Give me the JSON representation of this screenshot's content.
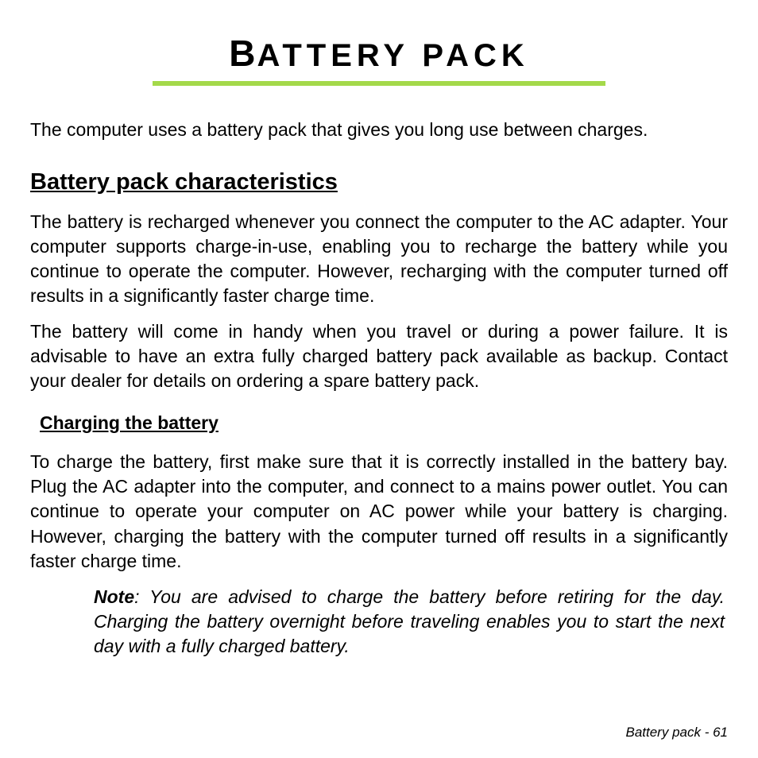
{
  "title": {
    "cap1": "B",
    "rest1": "ATTERY",
    "rest2": "PACK"
  },
  "underline_color": "#a4d94a",
  "intro": "The computer uses a battery pack that gives you long use between charges.",
  "section1": {
    "heading": "Battery pack characteristics",
    "p1": "The battery is recharged whenever you connect the computer to the AC adapter. Your computer supports charge-in-use, enabling you to recharge the battery while you continue to operate the computer. However, recharging with the computer turned off results in a significantly faster charge time.",
    "p2": "The battery will come in handy when you travel or during a power failure. It is advisable to have an extra fully charged battery pack available as backup. Contact your dealer for details on ordering a spare battery pack."
  },
  "section2": {
    "heading": "Charging the battery",
    "p1": "To charge the battery, first make sure that it is correctly installed in the battery bay. Plug the AC adapter into the computer, and connect to a mains power outlet. You can continue to operate your computer on AC power while your battery is charging. However, charging the battery with the computer turned off results in a significantly faster charge time.",
    "note_label": "Note",
    "note_body": ": You are advised to charge the battery before retiring for the day. Charging the battery overnight before traveling enables you to start the next day with a fully charged battery."
  },
  "footer": "Battery pack -  61"
}
